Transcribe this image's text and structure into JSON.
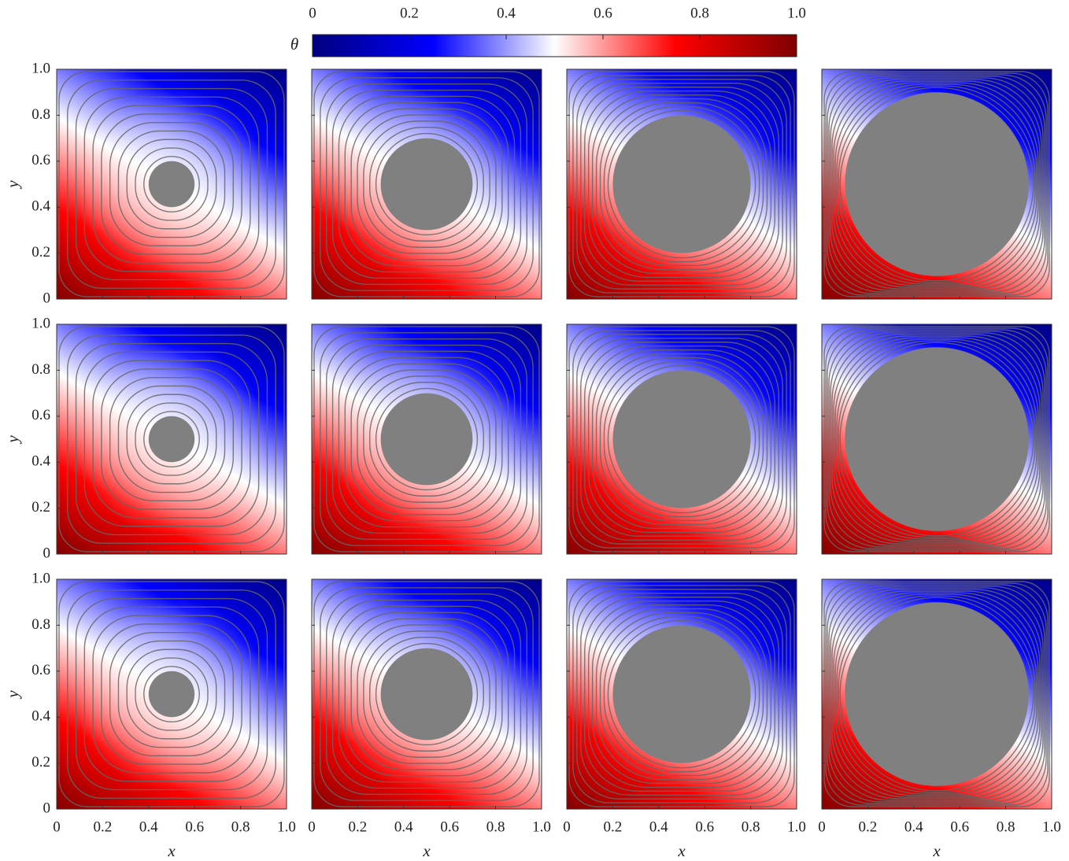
{
  "chart_data": {
    "type": "field",
    "colorbar": {
      "label": "θ",
      "lim": [
        0,
        1
      ],
      "ticks": [
        0,
        0.2,
        0.4,
        0.6,
        0.8,
        {
          "value": 1,
          "label": "1.0"
        }
      ],
      "colors": [
        "#00007f",
        "#0000ff",
        "#ffffff",
        "#ff0000",
        "#7f0000"
      ]
    },
    "xlabel": "x",
    "ylabel": "y",
    "xlim": [
      0,
      1
    ],
    "ylim": [
      0,
      1
    ],
    "xticks": [
      0,
      0.2,
      0.4,
      0.6,
      0.8,
      {
        "value": 1,
        "label": "1.0"
      }
    ],
    "yticks": [
      0,
      0.2,
      0.4,
      0.6,
      0.8,
      {
        "value": 1,
        "label": "1.0"
      }
    ],
    "obstacle_color": "#808080",
    "streamline_color": "#666666",
    "panels": [
      {
        "center_x": 0.5,
        "center_y": 0.5,
        "obstacle_radius": 0.1
      },
      {
        "center_x": 0.5,
        "center_y": 0.5,
        "obstacle_radius": 0.2
      },
      {
        "center_x": 0.5,
        "center_y": 0.5,
        "obstacle_radius": 0.3
      },
      {
        "center_x": 0.5,
        "center_y": 0.5,
        "obstacle_radius": 0.4
      },
      {
        "center_x": 0.5,
        "center_y": 0.5,
        "obstacle_radius": 0.1
      },
      {
        "center_x": 0.5,
        "center_y": 0.5,
        "obstacle_radius": 0.2
      },
      {
        "center_x": 0.5,
        "center_y": 0.5,
        "obstacle_radius": 0.3
      },
      {
        "center_x": 0.5,
        "center_y": 0.5,
        "obstacle_radius": 0.4
      },
      {
        "center_x": 0.5,
        "center_y": 0.5,
        "obstacle_radius": 0.1
      },
      {
        "center_x": 0.5,
        "center_y": 0.5,
        "obstacle_radius": 0.2
      },
      {
        "center_x": 0.5,
        "center_y": 0.5,
        "obstacle_radius": 0.3
      },
      {
        "center_x": 0.5,
        "center_y": 0.5,
        "obstacle_radius": 0.4
      }
    ]
  }
}
